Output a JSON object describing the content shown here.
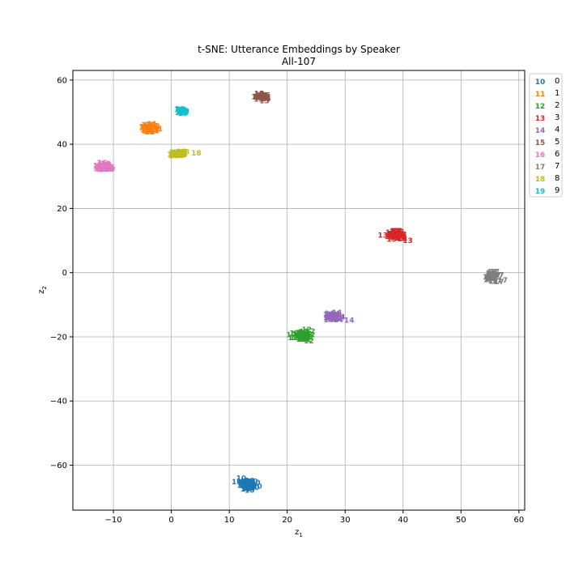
{
  "chart_data": {
    "type": "scatter",
    "title": "t-SNE: Utterance Embeddings by Speaker",
    "subtitle": "All-107",
    "xlabel": "z",
    "xlabel_sub": "1",
    "ylabel": "z",
    "ylabel_sub": "2",
    "xlim": [
      -17,
      61
    ],
    "ylim": [
      -74,
      63
    ],
    "xticks": [
      -10,
      0,
      10,
      20,
      30,
      40,
      50,
      60
    ],
    "yticks": [
      -60,
      -40,
      -20,
      0,
      20,
      40,
      60
    ],
    "xtick_labels": [
      "−10",
      "0",
      "10",
      "20",
      "30",
      "40",
      "50",
      "60"
    ],
    "ytick_labels": [
      "−60",
      "−40",
      "−20",
      "0",
      "20",
      "40",
      "60"
    ],
    "grid": true,
    "legend_placement": "outside top-right",
    "series": [
      {
        "name": "0",
        "marker": "10",
        "color": "#1f77b4",
        "center": [
          13,
          -66
        ],
        "spread": [
          1.3,
          1.7
        ],
        "count": 45
      },
      {
        "name": "1",
        "marker": "11",
        "color": "#ff7f0e",
        "center": [
          -3.6,
          45
        ],
        "spread": [
          1.2,
          1.2
        ],
        "count": 35
      },
      {
        "name": "2",
        "marker": "12",
        "color": "#2ca02c",
        "center": [
          22.8,
          -19.5
        ],
        "spread": [
          1.4,
          1.4
        ],
        "count": 35
      },
      {
        "name": "3",
        "marker": "13",
        "color": "#d62728",
        "center": [
          38.8,
          11.8
        ],
        "spread": [
          1.4,
          1.2
        ],
        "count": 40
      },
      {
        "name": "4",
        "marker": "14",
        "color": "#9467bd",
        "center": [
          28,
          -13.8
        ],
        "spread": [
          1.1,
          1.1
        ],
        "count": 30
      },
      {
        "name": "5",
        "marker": "15",
        "color": "#8c564b",
        "center": [
          15.8,
          54.7
        ],
        "spread": [
          0.9,
          0.9
        ],
        "count": 25
      },
      {
        "name": "6",
        "marker": "16",
        "color": "#e377c2",
        "center": [
          -11.7,
          33
        ],
        "spread": [
          1.3,
          1.1
        ],
        "count": 40
      },
      {
        "name": "7",
        "marker": "17",
        "color": "#7f7f7f",
        "center": [
          55.5,
          -1.3
        ],
        "spread": [
          1.0,
          1.5
        ],
        "count": 35
      },
      {
        "name": "8",
        "marker": "18",
        "color": "#bcbd22",
        "center": [
          0.9,
          37
        ],
        "spread": [
          1.1,
          0.8
        ],
        "count": 30
      },
      {
        "name": "9",
        "marker": "19",
        "color": "#17becf",
        "center": [
          1.7,
          50.2
        ],
        "spread": [
          0.6,
          0.8
        ],
        "count": 15
      }
    ],
    "outliers": [
      {
        "marker": "18",
        "color": "#bcbd22",
        "x": 4.3,
        "y": 37.3
      },
      {
        "marker": "14",
        "color": "#9467bd",
        "x": 30.7,
        "y": -14.8
      },
      {
        "marker": "13",
        "color": "#d62728",
        "x": 36.5,
        "y": 11.6
      },
      {
        "marker": "13",
        "color": "#d62728",
        "x": 40.8,
        "y": 10
      },
      {
        "marker": "12",
        "color": "#2ca02c",
        "x": 20.7,
        "y": -19.4
      },
      {
        "marker": "10",
        "color": "#1f77b4",
        "x": 14.8,
        "y": -66.5
      },
      {
        "marker": "11",
        "color": "#ff7f0e",
        "x": -4.5,
        "y": 44.6
      },
      {
        "marker": "17",
        "color": "#7f7f7f",
        "x": 57.2,
        "y": -2.4
      }
    ]
  }
}
